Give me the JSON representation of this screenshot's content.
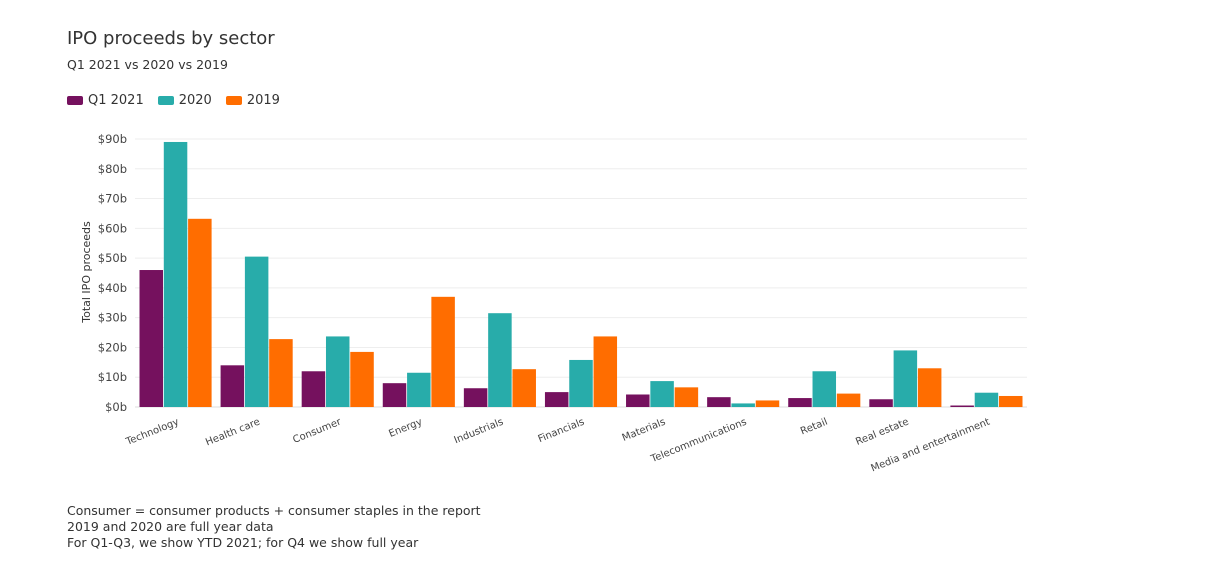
{
  "header": {
    "title": "IPO proceeds by sector",
    "subtitle": "Q1 2021 vs 2020 vs 2019"
  },
  "chart_data": {
    "type": "bar",
    "title": "IPO proceeds by sector",
    "subtitle": "Q1 2021 vs 2020 vs 2019",
    "xlabel": "",
    "ylabel": "Total IPO proceeds",
    "ylim": [
      0,
      90
    ],
    "yticks": [
      "$0b",
      "$10b",
      "$20b",
      "$30b",
      "$40b",
      "$50b",
      "$60b",
      "$70b",
      "$80b",
      "$90b"
    ],
    "grid": true,
    "legend_position": "top-left",
    "categories": [
      "Technology",
      "Health care",
      "Consumer",
      "Energy",
      "Industrials",
      "Financials",
      "Materials",
      "Telecommunications",
      "Retail",
      "Real estate",
      "Media and entertainment"
    ],
    "series": [
      {
        "name": "Q1 2021",
        "color": "#75115e",
        "values": [
          46,
          14,
          12,
          8,
          6.3,
          5,
          4.2,
          3.3,
          3,
          2.6,
          0.5
        ]
      },
      {
        "name": "2020",
        "color": "#28acaa",
        "values": [
          89,
          50.5,
          23.7,
          11.5,
          31.5,
          15.8,
          8.7,
          1.2,
          12,
          19,
          4.8
        ]
      },
      {
        "name": "2019",
        "color": "#ff6d00",
        "values": [
          63.2,
          22.8,
          18.5,
          37,
          12.7,
          23.7,
          6.6,
          2.2,
          4.5,
          13,
          3.7
        ]
      }
    ]
  },
  "notes": [
    "Consumer = consumer products + consumer staples in the report",
    "2019 and 2020 are full year data",
    "For Q1-Q3, we show YTD 2021; for Q4 we show full year"
  ]
}
